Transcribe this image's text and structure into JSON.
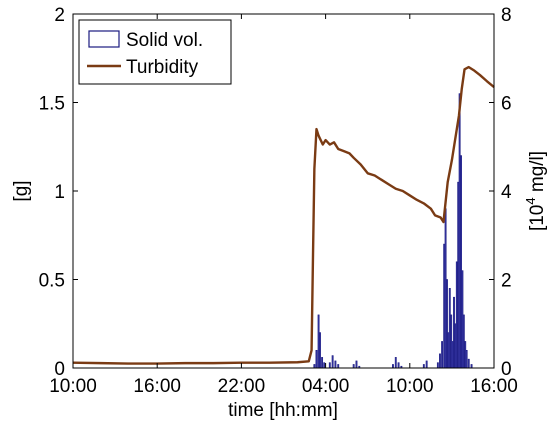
{
  "chart_data": {
    "type": "bar+line",
    "xlabel": "time [hh:mm]",
    "x_ticks": [
      "10:00",
      "16:00",
      "22:00",
      "04:00",
      "10:00",
      "16:00"
    ],
    "x_tick_hours": [
      0,
      6,
      12,
      18,
      24,
      30
    ],
    "x_range_hours": [
      0,
      30
    ],
    "y_left": {
      "label": "[g]",
      "range": [
        0,
        2
      ],
      "ticks": [
        "0",
        "0.5",
        "1",
        "1.5",
        "2"
      ],
      "tick_values": [
        0,
        0.5,
        1,
        1.5,
        2
      ]
    },
    "y_right": {
      "label": "[10^4 mg/l]",
      "label_base": "[10",
      "label_exp": "4",
      "label_rest": " mg/l]",
      "range": [
        0,
        8
      ],
      "ticks": [
        "0",
        "2",
        "4",
        "6",
        "8"
      ],
      "tick_values": [
        0,
        2,
        4,
        6,
        8
      ]
    },
    "grid": false,
    "legend_position": "top-left",
    "series": [
      {
        "name": "Solid vol.",
        "axis": "left",
        "kind": "bar",
        "color": "#3b3ba8",
        "edge": "#1a1a80",
        "points": [
          [
            17.2,
            0.02
          ],
          [
            17.35,
            0.1
          ],
          [
            17.5,
            0.3
          ],
          [
            17.6,
            0.2
          ],
          [
            17.75,
            0.06
          ],
          [
            17.9,
            0.03
          ],
          [
            18.3,
            0.03
          ],
          [
            18.5,
            0.07
          ],
          [
            18.7,
            0.04
          ],
          [
            18.9,
            0.02
          ],
          [
            20.0,
            0.02
          ],
          [
            20.2,
            0.04
          ],
          [
            20.4,
            0.01
          ],
          [
            22.8,
            0.02
          ],
          [
            23.0,
            0.06
          ],
          [
            23.2,
            0.03
          ],
          [
            23.4,
            0.01
          ],
          [
            25.0,
            0.02
          ],
          [
            25.2,
            0.04
          ],
          [
            26.0,
            0.03
          ],
          [
            26.15,
            0.08
          ],
          [
            26.3,
            0.15
          ],
          [
            26.45,
            0.7
          ],
          [
            26.55,
            0.9
          ],
          [
            26.65,
            0.5
          ],
          [
            26.75,
            0.2
          ],
          [
            26.85,
            0.45
          ],
          [
            26.95,
            0.3
          ],
          [
            27.05,
            0.15
          ],
          [
            27.15,
            0.4
          ],
          [
            27.25,
            0.25
          ],
          [
            27.35,
            0.6
          ],
          [
            27.45,
            1.05
          ],
          [
            27.55,
            1.55
          ],
          [
            27.65,
            1.2
          ],
          [
            27.75,
            0.55
          ],
          [
            27.85,
            0.3
          ],
          [
            27.95,
            0.15
          ],
          [
            28.05,
            0.1
          ],
          [
            28.2,
            0.05
          ],
          [
            28.4,
            0.02
          ]
        ]
      },
      {
        "name": "Turbidity",
        "axis": "right",
        "kind": "line",
        "color": "#7a3b14",
        "points": [
          [
            0,
            0.12
          ],
          [
            2,
            0.11
          ],
          [
            4,
            0.1
          ],
          [
            6,
            0.1
          ],
          [
            8,
            0.11
          ],
          [
            10,
            0.11
          ],
          [
            12,
            0.12
          ],
          [
            14,
            0.12
          ],
          [
            16,
            0.13
          ],
          [
            16.8,
            0.15
          ],
          [
            17.0,
            0.4
          ],
          [
            17.1,
            2.5
          ],
          [
            17.2,
            4.5
          ],
          [
            17.35,
            5.4
          ],
          [
            17.5,
            5.25
          ],
          [
            17.8,
            5.05
          ],
          [
            18.0,
            5.15
          ],
          [
            18.3,
            5.05
          ],
          [
            18.6,
            5.1
          ],
          [
            18.9,
            4.95
          ],
          [
            19.3,
            4.9
          ],
          [
            19.7,
            4.85
          ],
          [
            20.0,
            4.75
          ],
          [
            20.5,
            4.6
          ],
          [
            21.0,
            4.4
          ],
          [
            21.5,
            4.35
          ],
          [
            22.0,
            4.25
          ],
          [
            22.5,
            4.15
          ],
          [
            23.0,
            4.05
          ],
          [
            23.5,
            4.0
          ],
          [
            24.0,
            3.9
          ],
          [
            24.5,
            3.8
          ],
          [
            25.0,
            3.72
          ],
          [
            25.5,
            3.6
          ],
          [
            25.8,
            3.45
          ],
          [
            26.2,
            3.4
          ],
          [
            26.4,
            3.3
          ],
          [
            26.5,
            3.6
          ],
          [
            26.7,
            4.2
          ],
          [
            27.0,
            4.7
          ],
          [
            27.3,
            5.3
          ],
          [
            27.5,
            5.7
          ],
          [
            27.7,
            6.3
          ],
          [
            27.9,
            6.75
          ],
          [
            28.2,
            6.8
          ],
          [
            28.6,
            6.72
          ],
          [
            29.0,
            6.62
          ],
          [
            29.5,
            6.48
          ],
          [
            30.0,
            6.35
          ]
        ]
      }
    ]
  }
}
